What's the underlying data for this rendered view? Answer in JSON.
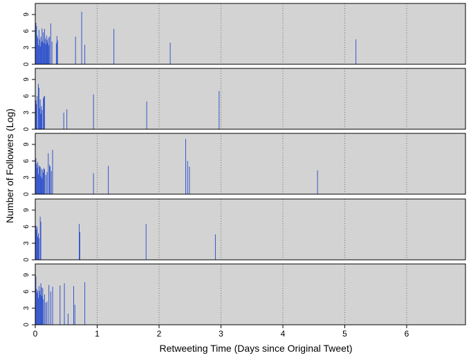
{
  "chart_data": {
    "type": "bar",
    "xlabel": "Retweeting Time (Days since Original Tweet)",
    "ylabel": "Number of Followers (Log)",
    "x_ticks": [
      0,
      1,
      2,
      3,
      4,
      5,
      6
    ],
    "y_ticks": [
      0,
      3,
      6,
      9
    ],
    "xlim": [
      0,
      6.95
    ],
    "ylim": [
      0,
      11
    ],
    "grid": "dotted vertical",
    "bar_color": "#3355cc",
    "panel_background": "#d3d3d3",
    "panels": [
      {
        "points": [
          {
            "x": 0.01,
            "y": 7.5
          },
          {
            "x": 0.02,
            "y": 6.9
          },
          {
            "x": 0.03,
            "y": 5.2
          },
          {
            "x": 0.04,
            "y": 4.8
          },
          {
            "x": 0.05,
            "y": 3.5
          },
          {
            "x": 0.06,
            "y": 6.2
          },
          {
            "x": 0.07,
            "y": 4.5
          },
          {
            "x": 0.08,
            "y": 3.2
          },
          {
            "x": 0.09,
            "y": 5.0
          },
          {
            "x": 0.1,
            "y": 4.0
          },
          {
            "x": 0.11,
            "y": 6.5
          },
          {
            "x": 0.12,
            "y": 4.2
          },
          {
            "x": 0.13,
            "y": 5.8
          },
          {
            "x": 0.14,
            "y": 3.8
          },
          {
            "x": 0.15,
            "y": 6.4
          },
          {
            "x": 0.16,
            "y": 4.6
          },
          {
            "x": 0.17,
            "y": 3.6
          },
          {
            "x": 0.18,
            "y": 5.2
          },
          {
            "x": 0.19,
            "y": 4.4
          },
          {
            "x": 0.2,
            "y": 3.9
          },
          {
            "x": 0.21,
            "y": 4.8
          },
          {
            "x": 0.22,
            "y": 3.4
          },
          {
            "x": 0.23,
            "y": 5.0
          },
          {
            "x": 0.25,
            "y": 7.4
          },
          {
            "x": 0.27,
            "y": 4.1
          },
          {
            "x": 0.34,
            "y": 3.8
          },
          {
            "x": 0.35,
            "y": 5.1
          },
          {
            "x": 0.36,
            "y": 4.3
          },
          {
            "x": 0.65,
            "y": 5.0
          },
          {
            "x": 0.75,
            "y": 9.5
          },
          {
            "x": 0.8,
            "y": 3.5
          },
          {
            "x": 1.27,
            "y": 6.4
          },
          {
            "x": 2.18,
            "y": 3.9
          },
          {
            "x": 5.18,
            "y": 4.5
          }
        ]
      },
      {
        "points": [
          {
            "x": 0.01,
            "y": 5.2
          },
          {
            "x": 0.02,
            "y": 4.5
          },
          {
            "x": 0.03,
            "y": 6.0
          },
          {
            "x": 0.05,
            "y": 8.2
          },
          {
            "x": 0.06,
            "y": 7.5
          },
          {
            "x": 0.07,
            "y": 3.8
          },
          {
            "x": 0.08,
            "y": 5.4
          },
          {
            "x": 0.09,
            "y": 2.8
          },
          {
            "x": 0.1,
            "y": 4.2
          },
          {
            "x": 0.11,
            "y": 3.5
          },
          {
            "x": 0.13,
            "y": 5.6
          },
          {
            "x": 0.14,
            "y": 5.9
          },
          {
            "x": 0.15,
            "y": 6.0
          },
          {
            "x": 0.46,
            "y": 3.0
          },
          {
            "x": 0.51,
            "y": 3.6
          },
          {
            "x": 0.94,
            "y": 6.3
          },
          {
            "x": 1.8,
            "y": 5.0
          },
          {
            "x": 2.97,
            "y": 6.9
          }
        ]
      },
      {
        "points": [
          {
            "x": 0.01,
            "y": 6.5
          },
          {
            "x": 0.02,
            "y": 5.5
          },
          {
            "x": 0.03,
            "y": 4.8
          },
          {
            "x": 0.04,
            "y": 5.8
          },
          {
            "x": 0.05,
            "y": 3.6
          },
          {
            "x": 0.06,
            "y": 5.2
          },
          {
            "x": 0.07,
            "y": 4.9
          },
          {
            "x": 0.08,
            "y": 5.0
          },
          {
            "x": 0.09,
            "y": 3.2
          },
          {
            "x": 0.1,
            "y": 4.6
          },
          {
            "x": 0.11,
            "y": 2.8
          },
          {
            "x": 0.12,
            "y": 4.4
          },
          {
            "x": 0.13,
            "y": 3.9
          },
          {
            "x": 0.14,
            "y": 4.7
          },
          {
            "x": 0.15,
            "y": 4.5
          },
          {
            "x": 0.17,
            "y": 3.5
          },
          {
            "x": 0.19,
            "y": 4.0
          },
          {
            "x": 0.21,
            "y": 7.4
          },
          {
            "x": 0.23,
            "y": 5.3
          },
          {
            "x": 0.24,
            "y": 5.0
          },
          {
            "x": 0.26,
            "y": 4.2
          },
          {
            "x": 0.28,
            "y": 8.0
          },
          {
            "x": 0.94,
            "y": 3.8
          },
          {
            "x": 1.18,
            "y": 5.1
          },
          {
            "x": 2.43,
            "y": 10.0
          },
          {
            "x": 2.46,
            "y": 6.0
          },
          {
            "x": 2.49,
            "y": 5.0
          },
          {
            "x": 4.56,
            "y": 4.3
          }
        ]
      },
      {
        "points": [
          {
            "x": 0.01,
            "y": 6.2
          },
          {
            "x": 0.02,
            "y": 5.5
          },
          {
            "x": 0.03,
            "y": 6.0
          },
          {
            "x": 0.04,
            "y": 4.2
          },
          {
            "x": 0.05,
            "y": 4.8
          },
          {
            "x": 0.06,
            "y": 3.9
          },
          {
            "x": 0.08,
            "y": 7.8
          },
          {
            "x": 0.09,
            "y": 6.9
          },
          {
            "x": 0.71,
            "y": 6.5
          },
          {
            "x": 0.72,
            "y": 5.0
          },
          {
            "x": 1.79,
            "y": 6.5
          },
          {
            "x": 2.91,
            "y": 4.6
          }
        ]
      },
      {
        "points": [
          {
            "x": 0.01,
            "y": 8.8
          },
          {
            "x": 0.02,
            "y": 6.5
          },
          {
            "x": 0.03,
            "y": 5.8
          },
          {
            "x": 0.04,
            "y": 6.2
          },
          {
            "x": 0.05,
            "y": 4.9
          },
          {
            "x": 0.06,
            "y": 7.0
          },
          {
            "x": 0.07,
            "y": 6.1
          },
          {
            "x": 0.08,
            "y": 5.4
          },
          {
            "x": 0.09,
            "y": 7.5
          },
          {
            "x": 0.1,
            "y": 6.8
          },
          {
            "x": 0.11,
            "y": 5.2
          },
          {
            "x": 0.12,
            "y": 6.6
          },
          {
            "x": 0.13,
            "y": 4.6
          },
          {
            "x": 0.15,
            "y": 5.5
          },
          {
            "x": 0.17,
            "y": 4.0
          },
          {
            "x": 0.19,
            "y": 4.2
          },
          {
            "x": 0.22,
            "y": 7.2
          },
          {
            "x": 0.25,
            "y": 6.0
          },
          {
            "x": 0.28,
            "y": 6.9
          },
          {
            "x": 0.4,
            "y": 7.1
          },
          {
            "x": 0.47,
            "y": 7.5
          },
          {
            "x": 0.53,
            "y": 2.0
          },
          {
            "x": 0.62,
            "y": 7.0
          },
          {
            "x": 0.64,
            "y": 3.6
          },
          {
            "x": 0.8,
            "y": 7.7
          }
        ]
      }
    ]
  }
}
